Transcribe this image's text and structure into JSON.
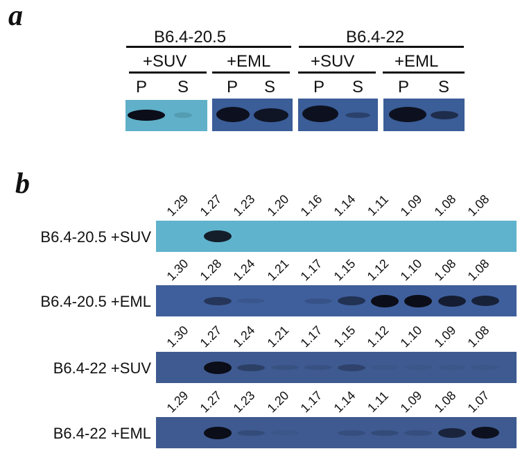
{
  "panel_a": {
    "label": "a",
    "groups": [
      {
        "name": "B6.4-20.5",
        "conditions": [
          {
            "name": "+SUV",
            "lanes": [
              "P",
              "S"
            ],
            "band_intensity": [
              1.0,
              0.12
            ]
          },
          {
            "name": "+EML",
            "lanes": [
              "P",
              "S"
            ],
            "band_intensity": [
              0.95,
              0.9
            ]
          }
        ]
      },
      {
        "name": "B6.4-22",
        "conditions": [
          {
            "name": "+SUV",
            "lanes": [
              "P",
              "S"
            ],
            "band_intensity": [
              0.95,
              0.35
            ]
          },
          {
            "name": "+EML",
            "lanes": [
              "P",
              "S"
            ],
            "band_intensity": [
              0.95,
              0.6
            ]
          }
        ]
      }
    ],
    "colors": {
      "light_blot": "#5fb0c8",
      "dark_blot": "#3b5d98",
      "band": "#0b0d18"
    }
  },
  "panel_b": {
    "label": "b",
    "rows": [
      {
        "label": "B6.4-20.5 +SUV",
        "densities": [
          "1.29",
          "1.27",
          "1.23",
          "1.20",
          "1.16",
          "1.14",
          "1.11",
          "1.09",
          "1.08",
          "1.08"
        ],
        "band_intensity": [
          0,
          0.9,
          0,
          0,
          0,
          0,
          0,
          0,
          0,
          0
        ],
        "blot_color": "#5fb3cc"
      },
      {
        "label": "B6.4-20.5 +EML",
        "densities": [
          "1.30",
          "1.28",
          "1.24",
          "1.21",
          "1.17",
          "1.15",
          "1.12",
          "1.10",
          "1.08",
          "1.08"
        ],
        "band_intensity": [
          0,
          0.5,
          0.1,
          0,
          0.15,
          0.55,
          1.0,
          1.0,
          0.8,
          0.75
        ],
        "blot_color": "#3f5f9c"
      },
      {
        "label": "B6.4-22 +SUV",
        "densities": [
          "1.30",
          "1.27",
          "1.24",
          "1.21",
          "1.17",
          "1.15",
          "1.12",
          "1.10",
          "1.09",
          "1.08"
        ],
        "band_intensity": [
          0,
          1.0,
          0.35,
          0.12,
          0.1,
          0.3,
          0.05,
          0.05,
          0.05,
          0.05
        ],
        "blot_color": "#3e5a90"
      },
      {
        "label": "B6.4-22 +EML",
        "densities": [
          "1.29",
          "1.27",
          "1.23",
          "1.20",
          "1.17",
          "1.14",
          "1.11",
          "1.09",
          "1.08",
          "1.07"
        ],
        "band_intensity": [
          0,
          1.0,
          0.2,
          0.05,
          0,
          0.15,
          0.2,
          0.15,
          0.7,
          0.95
        ],
        "blot_color": "#3e5a90"
      }
    ],
    "band_color": "#0b0d18"
  }
}
